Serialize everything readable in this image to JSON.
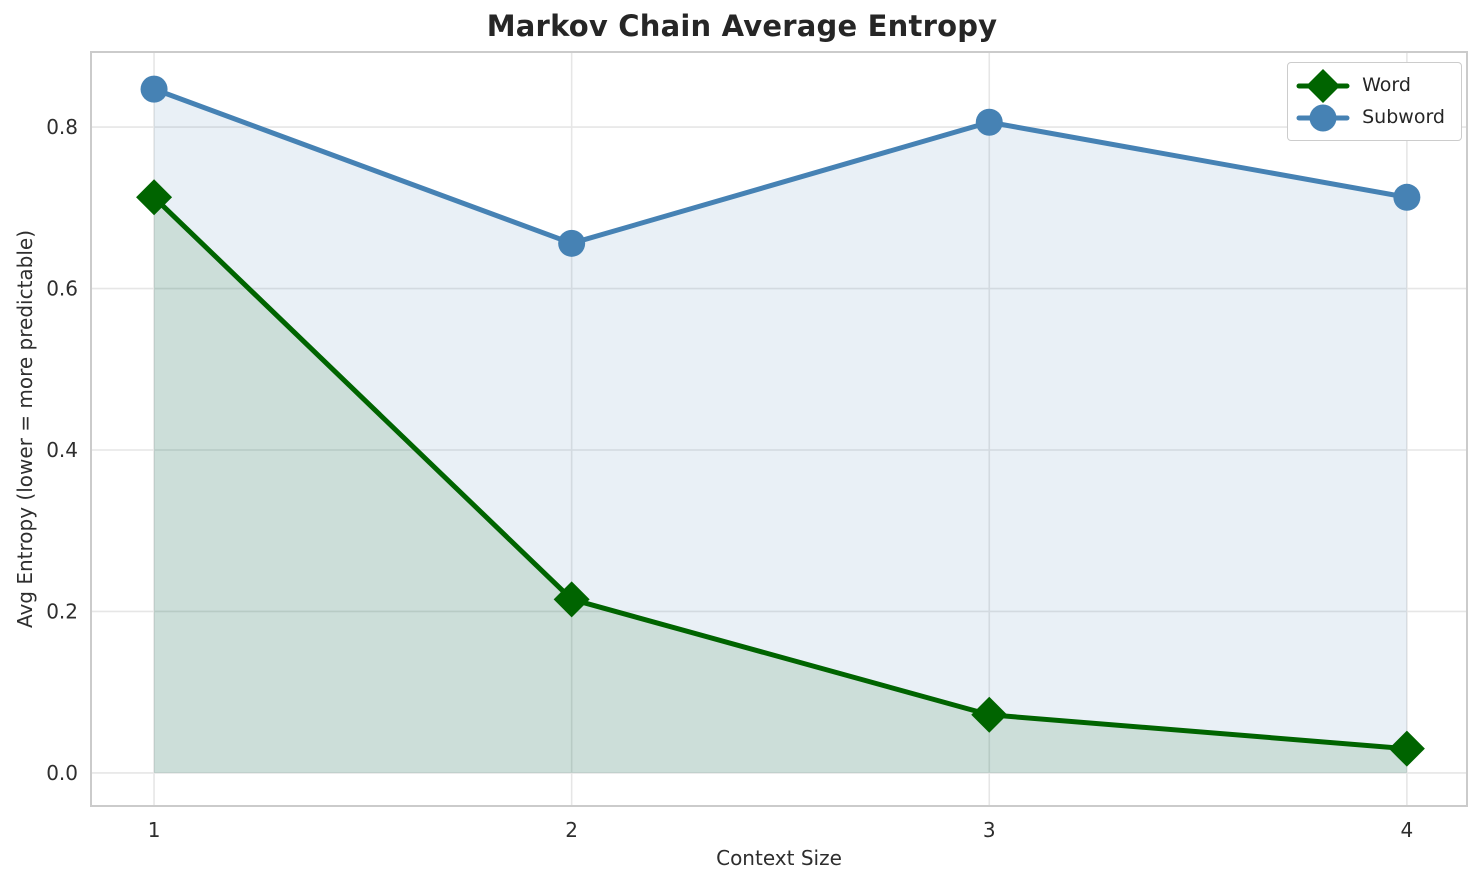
{
  "chart_data": {
    "type": "line",
    "title": "Markov Chain Average Entropy",
    "xlabel": "Context Size",
    "ylabel": "Avg Entropy (lower = more predictable)",
    "x": [
      1,
      2,
      3,
      4
    ],
    "series": [
      {
        "name": "Word",
        "values": [
          0.713,
          0.215,
          0.072,
          0.03
        ],
        "color": "#006400",
        "marker": "diamond",
        "fill_to_zero": true,
        "fill_alpha": 0.13
      },
      {
        "name": "Subword",
        "values": [
          0.847,
          0.656,
          0.806,
          0.713
        ],
        "color": "#4682B4",
        "marker": "circle",
        "fill_to_zero": true,
        "fill_alpha": 0.12
      }
    ],
    "xticks": {
      "values": [
        1,
        2,
        3,
        4
      ],
      "labels": [
        "1",
        "2",
        "3",
        "4"
      ]
    },
    "yticks": {
      "values": [
        0.0,
        0.2,
        0.4,
        0.6,
        0.8
      ],
      "labels": [
        "0.0",
        "0.2",
        "0.4",
        "0.6",
        "0.8"
      ]
    },
    "xlim": [
      0.849,
      4.144
    ],
    "ylim": [
      -0.041,
      0.893
    ],
    "grid": true,
    "legend": {
      "position": "upper right",
      "entries": [
        "Word",
        "Subword"
      ]
    }
  },
  "style": {
    "background": "#ffffff",
    "grid_color": "#e6e6e6",
    "spine_color": "#cbcbcb",
    "text_color": "#2e2e2e",
    "title_color": "#262626",
    "line_width": 5,
    "marker_radius": 13.5,
    "diamond_half": 18
  }
}
